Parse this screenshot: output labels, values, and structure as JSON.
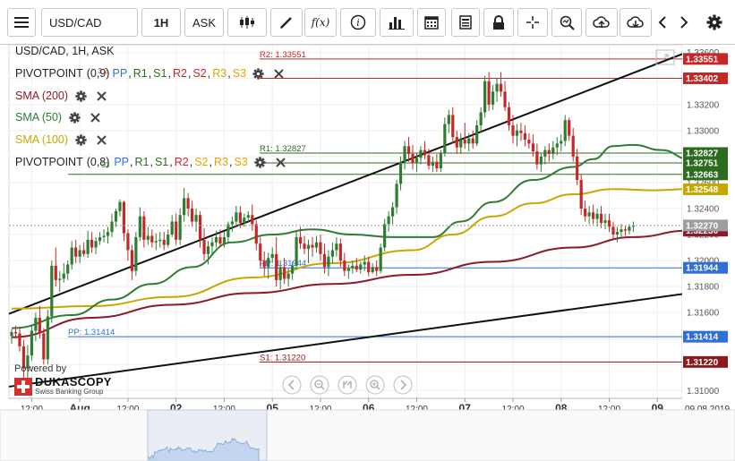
{
  "toolbar": {
    "symbol_value": "USD/CAD",
    "period_label": "1H",
    "side_label": "ASK",
    "function_label": "f(x)"
  },
  "legend": {
    "title": "USD/CAD, 1H, ASK",
    "pivot1": {
      "name": "PIVOTPOINT",
      "params": "(0,9)",
      "overlap": "3 2",
      "pp": "PP",
      "r1": "R1",
      "s1": "S1",
      "r2": "R2",
      "s2": "S2",
      "r3": "R3",
      "s3": "S3"
    },
    "sma200": "SMA (200)",
    "sma50": "SMA (50)",
    "sma100": "SMA (100)",
    "pivot2": {
      "name": "PIVOTPOINT",
      "params": "(0,8)",
      "overlap": "33",
      "pp": "PP",
      "r1": "R1",
      "s1": "S1",
      "r2": "R2",
      "s2": "S2",
      "r3": "R3",
      "s3": "S3"
    }
  },
  "branding": {
    "powered": "Powered by",
    "name": "DUKASCOPY",
    "sub": "Swiss Banking Group"
  },
  "chart_data": {
    "type": "candlestick",
    "symbol": "USD/CAD",
    "timeframe": "1H",
    "side": "ASK",
    "ylim": [
      1.3094,
      1.3366
    ],
    "y_ticks": [
      "1.31000",
      "1.31200",
      "1.31400",
      "1.31600",
      "1.31800",
      "1.32000",
      "1.32200",
      "1.32400",
      "1.32600",
      "1.32800",
      "1.33000",
      "1.33200",
      "1.33400",
      "1.33600"
    ],
    "x_ticks": [
      {
        "label": "12:00",
        "bold": false,
        "t": 5
      },
      {
        "label": "Aug",
        "bold": true,
        "t": 17
      },
      {
        "label": "12:00",
        "bold": false,
        "t": 29
      },
      {
        "label": "02",
        "bold": true,
        "t": 41
      },
      {
        "label": "12:00",
        "bold": false,
        "t": 53
      },
      {
        "label": "05",
        "bold": true,
        "t": 65
      },
      {
        "label": "12:00",
        "bold": false,
        "t": 77
      },
      {
        "label": "06",
        "bold": true,
        "t": 89
      },
      {
        "label": "12:00",
        "bold": false,
        "t": 101
      },
      {
        "label": "07",
        "bold": true,
        "t": 113
      },
      {
        "label": "12:00",
        "bold": false,
        "t": 125
      },
      {
        "label": "08",
        "bold": true,
        "t": 137
      },
      {
        "label": "12:00",
        "bold": false,
        "t": 149
      },
      {
        "label": "09",
        "bold": true,
        "t": 161
      }
    ],
    "date_label": "09.08.2019",
    "levels": [
      {
        "label": "R2: 1.33551",
        "value": 1.33551,
        "badge": "1.33551",
        "color": "#c62828",
        "text_color": "#c62828"
      },
      {
        "label": "",
        "value": 1.33402,
        "badge": "1.33402",
        "color": "#c62828",
        "text_color": "#c62828"
      },
      {
        "label": "R1: 1.32827",
        "value": 1.32827,
        "badge": "1.32827",
        "color": "#2e6b1f",
        "text_color": "#2e6b1f"
      },
      {
        "label": "",
        "value": 1.32751,
        "badge": "1.32751",
        "color": "#2e6b1f",
        "text_color": "#2e6b1f"
      },
      {
        "label": "",
        "value": 1.32663,
        "badge": "1.32663",
        "color": "#2e6b1f",
        "text_color": "#2e6b1f"
      },
      {
        "label": "PP: 1.31944",
        "value": 1.31944,
        "badge": "1.31944",
        "color": "#2f6fd6",
        "text_color": "#2f6fd6"
      },
      {
        "label": "PP: 1.31414",
        "value": 1.31414,
        "badge": "1.31414",
        "color": "#2f6fd6",
        "text_color": "#2f6fd6"
      },
      {
        "label": "S1: 1.31220",
        "value": 1.3122,
        "badge": "1.31220",
        "color": "#8b1a1a",
        "text_color": "#8b1a1a"
      }
    ],
    "sma_badges": [
      {
        "value": 1.32548,
        "label": "1.32548",
        "color": "#c8a800"
      },
      {
        "value": 1.3223,
        "label": "1.32230",
        "color": "#8b1a2a"
      }
    ],
    "current": {
      "value": 1.3227,
      "label": "1.32270",
      "color": "#9e9e9e"
    },
    "channel": [
      {
        "t0": 0,
        "v0": 1.3159,
        "t1": 169,
        "v1": 1.3361
      },
      {
        "t0": 0,
        "v0": 1.3103,
        "t1": 169,
        "v1": 1.3175
      }
    ],
    "sma200": {
      "color": "#8b1a2a",
      "points": [
        [
          0,
          1.3141
        ],
        [
          20,
          1.3156
        ],
        [
          40,
          1.3166
        ],
        [
          60,
          1.3175
        ],
        [
          80,
          1.3182
        ],
        [
          100,
          1.3189
        ],
        [
          120,
          1.3199
        ],
        [
          140,
          1.321
        ],
        [
          155,
          1.3218
        ],
        [
          169,
          1.3223
        ]
      ]
    },
    "sma100": {
      "color": "#c8a800",
      "points": [
        [
          0,
          1.3163
        ],
        [
          20,
          1.3165
        ],
        [
          40,
          1.3172
        ],
        [
          60,
          1.3187
        ],
        [
          80,
          1.3198
        ],
        [
          100,
          1.3208
        ],
        [
          110,
          1.322
        ],
        [
          120,
          1.3234
        ],
        [
          130,
          1.3244
        ],
        [
          140,
          1.3251
        ],
        [
          150,
          1.3255
        ],
        [
          160,
          1.3254
        ],
        [
          169,
          1.3255
        ]
      ]
    },
    "sma50": {
      "color": "#2e7d32",
      "points": [
        [
          0,
          1.3148
        ],
        [
          15,
          1.3158
        ],
        [
          25,
          1.317
        ],
        [
          35,
          1.3182
        ],
        [
          45,
          1.3195
        ],
        [
          55,
          1.3214
        ],
        [
          65,
          1.322
        ],
        [
          75,
          1.3224
        ],
        [
          85,
          1.322
        ],
        [
          95,
          1.3218
        ],
        [
          105,
          1.3218
        ],
        [
          112,
          1.323
        ],
        [
          120,
          1.3245
        ],
        [
          130,
          1.3262
        ],
        [
          140,
          1.3272
        ],
        [
          145,
          1.3278
        ],
        [
          150,
          1.3288
        ],
        [
          155,
          1.3289
        ],
        [
          162,
          1.3285
        ],
        [
          169,
          1.3278
        ]
      ]
    },
    "candles": [
      [
        1.3142,
        1.3147,
        1.3136,
        1.3145
      ],
      [
        1.3145,
        1.315,
        1.314,
        1.3144
      ],
      [
        1.3144,
        1.3149,
        1.313,
        1.3134
      ],
      [
        1.3134,
        1.3139,
        1.311,
        1.3117
      ],
      [
        1.3117,
        1.3135,
        1.3103,
        1.3127
      ],
      [
        1.3127,
        1.315,
        1.3123,
        1.3146
      ],
      [
        1.3146,
        1.316,
        1.3138,
        1.3156
      ],
      [
        1.3156,
        1.3165,
        1.314,
        1.3144
      ],
      [
        1.3144,
        1.3148,
        1.312,
        1.3124
      ],
      [
        1.3124,
        1.3162,
        1.312,
        1.3157
      ],
      [
        1.3157,
        1.32,
        1.3152,
        1.3196
      ],
      [
        1.3196,
        1.321,
        1.318,
        1.3185
      ],
      [
        1.3185,
        1.3192,
        1.3176,
        1.3186
      ],
      [
        1.3186,
        1.3198,
        1.3183,
        1.319
      ],
      [
        1.319,
        1.32,
        1.3185,
        1.3197
      ],
      [
        1.3197,
        1.3215,
        1.3193,
        1.321
      ],
      [
        1.321,
        1.3216,
        1.3198,
        1.3203
      ],
      [
        1.3203,
        1.3212,
        1.3198,
        1.3208
      ],
      [
        1.3208,
        1.3214,
        1.3203,
        1.3205
      ],
      [
        1.3205,
        1.3223,
        1.3202,
        1.3216
      ],
      [
        1.3216,
        1.3222,
        1.3206,
        1.321
      ],
      [
        1.321,
        1.3218,
        1.3205,
        1.3215
      ],
      [
        1.3215,
        1.3222,
        1.3212,
        1.3218
      ],
      [
        1.3218,
        1.3224,
        1.3214,
        1.3219
      ],
      [
        1.3219,
        1.3226,
        1.3213,
        1.3222
      ],
      [
        1.3222,
        1.3236,
        1.3218,
        1.323
      ],
      [
        1.323,
        1.324,
        1.3226,
        1.3238
      ],
      [
        1.3238,
        1.3247,
        1.3234,
        1.3245
      ],
      [
        1.3245,
        1.3246,
        1.3215,
        1.3221
      ],
      [
        1.3221,
        1.3224,
        1.32,
        1.3208
      ],
      [
        1.3208,
        1.3212,
        1.3185,
        1.3192
      ],
      [
        1.3192,
        1.3222,
        1.3188,
        1.3218
      ],
      [
        1.3218,
        1.3241,
        1.3215,
        1.3234
      ],
      [
        1.3234,
        1.3238,
        1.321,
        1.3216
      ],
      [
        1.3216,
        1.3226,
        1.3212,
        1.3219
      ],
      [
        1.3219,
        1.3224,
        1.321,
        1.3214
      ],
      [
        1.3214,
        1.3221,
        1.3208,
        1.3215
      ],
      [
        1.3215,
        1.3222,
        1.321,
        1.3216
      ],
      [
        1.3216,
        1.3222,
        1.3208,
        1.3212
      ],
      [
        1.3212,
        1.3224,
        1.321,
        1.322
      ],
      [
        1.322,
        1.3235,
        1.3218,
        1.323
      ],
      [
        1.323,
        1.3236,
        1.3212,
        1.3216
      ],
      [
        1.3216,
        1.324,
        1.3212,
        1.3235
      ],
      [
        1.3235,
        1.3256,
        1.323,
        1.3248
      ],
      [
        1.3248,
        1.3252,
        1.3234,
        1.324
      ],
      [
        1.324,
        1.3246,
        1.3226,
        1.323
      ],
      [
        1.323,
        1.324,
        1.3222,
        1.3235
      ],
      [
        1.3235,
        1.3238,
        1.321,
        1.3216
      ],
      [
        1.3216,
        1.3225,
        1.32,
        1.3205
      ],
      [
        1.3205,
        1.3215,
        1.3197,
        1.3211
      ],
      [
        1.3211,
        1.3218,
        1.3205,
        1.3214
      ],
      [
        1.3214,
        1.3223,
        1.321,
        1.3218
      ],
      [
        1.3218,
        1.3224,
        1.321,
        1.3213
      ],
      [
        1.3213,
        1.3222,
        1.321,
        1.3218
      ],
      [
        1.3218,
        1.323,
        1.3214,
        1.3228
      ],
      [
        1.3228,
        1.3234,
        1.3222,
        1.323
      ],
      [
        1.323,
        1.3242,
        1.3226,
        1.3237
      ],
      [
        1.3237,
        1.3242,
        1.3225,
        1.3229
      ],
      [
        1.3229,
        1.3236,
        1.3226,
        1.3233
      ],
      [
        1.3233,
        1.3238,
        1.3229,
        1.3235
      ],
      [
        1.3235,
        1.3243,
        1.3223,
        1.3228
      ],
      [
        1.3228,
        1.3231,
        1.3208,
        1.3213
      ],
      [
        1.3213,
        1.3218,
        1.3195,
        1.32
      ],
      [
        1.32,
        1.3207,
        1.3188,
        1.3195
      ],
      [
        1.3195,
        1.3206,
        1.3186,
        1.3202
      ],
      [
        1.3202,
        1.321,
        1.3198,
        1.3205
      ],
      [
        1.3205,
        1.3218,
        1.318,
        1.3185
      ],
      [
        1.3185,
        1.32,
        1.3178,
        1.3195
      ],
      [
        1.3195,
        1.3202,
        1.3182,
        1.3186
      ],
      [
        1.3186,
        1.3194,
        1.318,
        1.319
      ],
      [
        1.319,
        1.3199,
        1.3185,
        1.3196
      ],
      [
        1.3196,
        1.3223,
        1.3193,
        1.3218
      ],
      [
        1.3218,
        1.3226,
        1.3209,
        1.3213
      ],
      [
        1.3213,
        1.3219,
        1.3205,
        1.3209
      ],
      [
        1.3209,
        1.3216,
        1.3198,
        1.3212
      ],
      [
        1.3212,
        1.3218,
        1.3203,
        1.321
      ],
      [
        1.321,
        1.3219,
        1.3206,
        1.3214
      ],
      [
        1.3214,
        1.322,
        1.32,
        1.3205
      ],
      [
        1.3205,
        1.3213,
        1.319,
        1.3195
      ],
      [
        1.3195,
        1.3208,
        1.3188,
        1.3203
      ],
      [
        1.3203,
        1.3214,
        1.3198,
        1.3208
      ],
      [
        1.3208,
        1.3218,
        1.3203,
        1.3213
      ],
      [
        1.3213,
        1.3217,
        1.3195,
        1.32
      ],
      [
        1.32,
        1.3206,
        1.3188,
        1.3192
      ],
      [
        1.3192,
        1.3197,
        1.3186,
        1.3194
      ],
      [
        1.3194,
        1.32,
        1.319,
        1.3196
      ],
      [
        1.3196,
        1.3202,
        1.3191,
        1.3193
      ],
      [
        1.3193,
        1.3199,
        1.319,
        1.3197
      ],
      [
        1.3197,
        1.3204,
        1.3192,
        1.3199
      ],
      [
        1.3199,
        1.3203,
        1.3188,
        1.3191
      ],
      [
        1.3191,
        1.3198,
        1.319,
        1.3195
      ],
      [
        1.3195,
        1.32,
        1.3188,
        1.3192
      ],
      [
        1.3192,
        1.3213,
        1.319,
        1.321
      ],
      [
        1.321,
        1.3232,
        1.3207,
        1.3228
      ],
      [
        1.3228,
        1.3238,
        1.3222,
        1.3234
      ],
      [
        1.3234,
        1.3245,
        1.3228,
        1.3241
      ],
      [
        1.3241,
        1.3262,
        1.3236,
        1.3259
      ],
      [
        1.3259,
        1.328,
        1.3254,
        1.3276
      ],
      [
        1.3276,
        1.3292,
        1.327,
        1.3288
      ],
      [
        1.3288,
        1.3295,
        1.3276,
        1.3282
      ],
      [
        1.3282,
        1.3289,
        1.327,
        1.3275
      ],
      [
        1.3275,
        1.3283,
        1.3268,
        1.3279
      ],
      [
        1.3279,
        1.3288,
        1.3274,
        1.3285
      ],
      [
        1.3285,
        1.3292,
        1.3278,
        1.3281
      ],
      [
        1.3281,
        1.3286,
        1.327,
        1.3273
      ],
      [
        1.3273,
        1.328,
        1.3268,
        1.3276
      ],
      [
        1.3276,
        1.3282,
        1.3268,
        1.3271
      ],
      [
        1.3271,
        1.3285,
        1.3268,
        1.3283
      ],
      [
        1.3283,
        1.331,
        1.328,
        1.3305
      ],
      [
        1.3305,
        1.3316,
        1.3298,
        1.3312
      ],
      [
        1.3312,
        1.3318,
        1.329,
        1.3295
      ],
      [
        1.3295,
        1.33,
        1.3282,
        1.3287
      ],
      [
        1.3287,
        1.3298,
        1.3282,
        1.3293
      ],
      [
        1.3293,
        1.3306,
        1.3286,
        1.329
      ],
      [
        1.329,
        1.3298,
        1.3284,
        1.3294
      ],
      [
        1.3294,
        1.33,
        1.3286,
        1.329
      ],
      [
        1.329,
        1.3308,
        1.3288,
        1.3304
      ],
      [
        1.3304,
        1.3318,
        1.3298,
        1.3314
      ],
      [
        1.3314,
        1.3342,
        1.331,
        1.3338
      ],
      [
        1.3338,
        1.3345,
        1.3315,
        1.332
      ],
      [
        1.332,
        1.3335,
        1.3316,
        1.333
      ],
      [
        1.333,
        1.334,
        1.3322,
        1.3336
      ],
      [
        1.3336,
        1.3345,
        1.3326,
        1.333
      ],
      [
        1.333,
        1.3338,
        1.3315,
        1.3318
      ],
      [
        1.3318,
        1.3322,
        1.33,
        1.3304
      ],
      [
        1.3304,
        1.3312,
        1.329,
        1.3296
      ],
      [
        1.3296,
        1.3305,
        1.3288,
        1.33
      ],
      [
        1.33,
        1.3306,
        1.3292,
        1.3298
      ],
      [
        1.3298,
        1.3304,
        1.3288,
        1.3293
      ],
      [
        1.3293,
        1.3298,
        1.3286,
        1.329
      ],
      [
        1.329,
        1.3297,
        1.328,
        1.3284
      ],
      [
        1.3284,
        1.329,
        1.327,
        1.3274
      ],
      [
        1.3274,
        1.3283,
        1.3268,
        1.328
      ],
      [
        1.328,
        1.3288,
        1.3274,
        1.3285
      ],
      [
        1.3285,
        1.329,
        1.3276,
        1.3282
      ],
      [
        1.3282,
        1.3292,
        1.3278,
        1.3287
      ],
      [
        1.3287,
        1.3295,
        1.3281,
        1.329
      ],
      [
        1.329,
        1.3297,
        1.3284,
        1.3292
      ],
      [
        1.3292,
        1.3312,
        1.3288,
        1.3308
      ],
      [
        1.3308,
        1.331,
        1.3292,
        1.3296
      ],
      [
        1.3296,
        1.3302,
        1.3276,
        1.328
      ],
      [
        1.328,
        1.3286,
        1.3258,
        1.3262
      ],
      [
        1.3262,
        1.3266,
        1.3235,
        1.324
      ],
      [
        1.324,
        1.3246,
        1.323,
        1.3234
      ],
      [
        1.3234,
        1.3242,
        1.3228,
        1.3237
      ],
      [
        1.3237,
        1.3243,
        1.3228,
        1.3232
      ],
      [
        1.3232,
        1.324,
        1.3226,
        1.3236
      ],
      [
        1.3236,
        1.3242,
        1.3225,
        1.3229
      ],
      [
        1.3229,
        1.3236,
        1.3224,
        1.3231
      ],
      [
        1.3231,
        1.3236,
        1.3222,
        1.3226
      ],
      [
        1.3226,
        1.323,
        1.3216,
        1.322
      ],
      [
        1.322,
        1.3226,
        1.3214,
        1.3222
      ],
      [
        1.3222,
        1.3228,
        1.3217,
        1.3224
      ],
      [
        1.3224,
        1.3227,
        1.3219,
        1.3223
      ],
      [
        1.3223,
        1.3228,
        1.322,
        1.3226
      ],
      [
        1.3226,
        1.323,
        1.3222,
        1.3227
      ]
    ]
  }
}
